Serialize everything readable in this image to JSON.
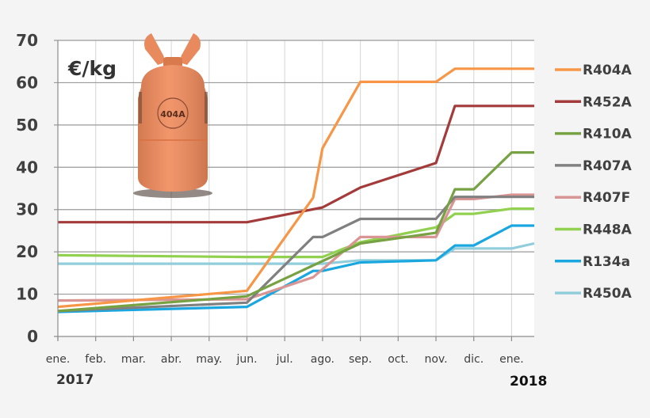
{
  "chart_data": {
    "type": "line",
    "title": "",
    "unit_label": "€/kg",
    "xlabel": "",
    "ylabel": "€/kg",
    "ylim": [
      0,
      70
    ],
    "yticks": [
      0,
      10,
      20,
      30,
      40,
      50,
      60,
      70
    ],
    "grid": true,
    "legend_position": "right",
    "categories": [
      "ene.",
      "feb.",
      "mar.",
      "abr.",
      "may.",
      "jun.",
      "jul.",
      "ago.",
      "sep.",
      "oct.",
      "nov.",
      "dic.",
      "ene."
    ],
    "year_labels": [
      {
        "label": "2017",
        "index": 0
      },
      {
        "label": "2018",
        "index": 12
      }
    ],
    "image_annotation": "404A",
    "series": [
      {
        "name": "R404A",
        "color": "#f79646",
        "x": [
          0,
          5,
          6.75,
          7,
          8,
          10,
          10.5,
          12.6
        ],
        "values": [
          7.0,
          10.8,
          32.8,
          44.5,
          60.2,
          60.2,
          63.3,
          63.3
        ]
      },
      {
        "name": "R452A",
        "color": "#a33b3b",
        "x": [
          0,
          5,
          7,
          8,
          10,
          10.5,
          12.6
        ],
        "values": [
          27.0,
          27.0,
          30.5,
          35.2,
          41.0,
          54.5,
          54.5
        ]
      },
      {
        "name": "R410A",
        "color": "#77a244",
        "x": [
          0,
          5,
          8,
          10,
          10.5,
          11,
          12,
          12.6
        ],
        "values": [
          6.0,
          9.5,
          22.0,
          24.5,
          34.8,
          34.8,
          43.5,
          43.5
        ]
      },
      {
        "name": "R407A",
        "color": "#808080",
        "x": [
          0,
          5,
          6.75,
          7,
          8,
          10,
          10.5,
          12.6
        ],
        "values": [
          6.0,
          8.0,
          23.5,
          23.5,
          27.8,
          27.8,
          33.0,
          33.0
        ]
      },
      {
        "name": "R407F",
        "color": "#d99594",
        "x": [
          0,
          5,
          6.75,
          8,
          10,
          10.5,
          11,
          12,
          12.6
        ],
        "values": [
          8.5,
          8.8,
          14.0,
          23.5,
          23.5,
          32.5,
          32.5,
          33.5,
          33.5
        ]
      },
      {
        "name": "R448A",
        "color": "#92d050",
        "x": [
          0,
          5,
          7,
          8,
          10,
          10.5,
          11,
          12,
          12.6
        ],
        "values": [
          19.2,
          18.8,
          18.8,
          22.3,
          25.8,
          29.0,
          29.0,
          30.2,
          30.2
        ]
      },
      {
        "name": "R134a",
        "color": "#1aa7e0",
        "x": [
          0,
          5,
          6.75,
          7,
          8,
          10,
          10.5,
          11,
          12,
          12.6
        ],
        "values": [
          5.8,
          7.0,
          15.5,
          15.5,
          17.5,
          18.0,
          21.5,
          21.5,
          26.2,
          26.2
        ]
      },
      {
        "name": "R450A",
        "color": "#92cddc",
        "x": [
          0,
          5,
          7,
          8,
          10,
          10.5,
          11,
          12,
          12.6
        ],
        "values": [
          17.2,
          17.2,
          17.2,
          18.0,
          18.0,
          20.8,
          20.8,
          20.8,
          22.0
        ]
      }
    ]
  }
}
